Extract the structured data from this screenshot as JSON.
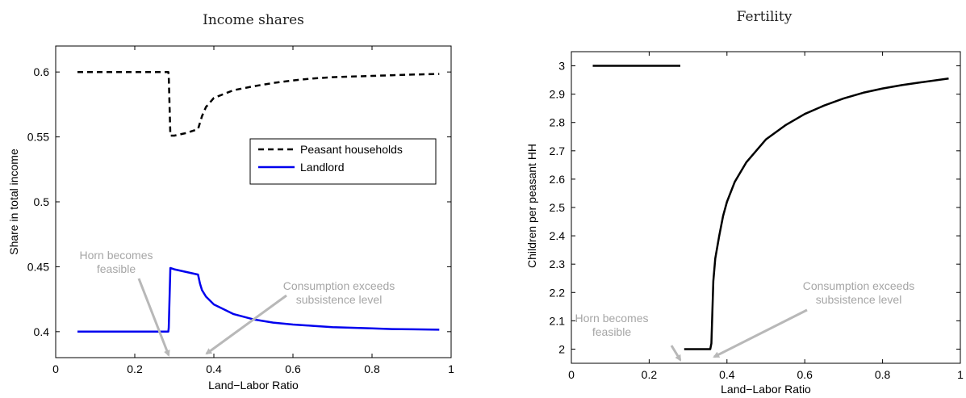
{
  "chart_data": [
    {
      "type": "line",
      "title": "Income shares",
      "xlabel": "Land−Labor Ratio",
      "ylabel": "Share in total income",
      "xlim": [
        0,
        1
      ],
      "ylim": [
        0.38,
        0.62
      ],
      "xticks": [
        "0",
        "0.2",
        "0.4",
        "0.6",
        "0.8",
        "1"
      ],
      "yticks": [
        "0.4",
        "0.45",
        "0.5",
        "0.55",
        "0.6"
      ],
      "legend_position": "upper-right",
      "series": [
        {
          "name": "Peasant households",
          "style": "dashed",
          "color": "#000000",
          "x": [
            0.055,
            0.2,
            0.285,
            0.286,
            0.29,
            0.3,
            0.33,
            0.36,
            0.37,
            0.38,
            0.4,
            0.45,
            0.5,
            0.55,
            0.6,
            0.65,
            0.7,
            0.75,
            0.8,
            0.85,
            0.9,
            0.97
          ],
          "y": [
            0.6,
            0.6,
            0.6,
            0.597,
            0.551,
            0.551,
            0.553,
            0.556,
            0.566,
            0.573,
            0.58,
            0.586,
            0.589,
            0.5915,
            0.5935,
            0.595,
            0.596,
            0.5965,
            0.597,
            0.5975,
            0.598,
            0.5985
          ]
        },
        {
          "name": "Landlord",
          "style": "solid",
          "color": "#0000ee",
          "x": [
            0.055,
            0.2,
            0.285,
            0.286,
            0.29,
            0.3,
            0.33,
            0.36,
            0.365,
            0.37,
            0.38,
            0.4,
            0.45,
            0.5,
            0.55,
            0.6,
            0.65,
            0.7,
            0.75,
            0.8,
            0.85,
            0.9,
            0.97
          ],
          "y": [
            0.4,
            0.4,
            0.4,
            0.403,
            0.449,
            0.448,
            0.446,
            0.444,
            0.437,
            0.432,
            0.427,
            0.421,
            0.4135,
            0.4095,
            0.407,
            0.4055,
            0.4045,
            0.4035,
            0.403,
            0.4025,
            0.402,
            0.4018,
            0.4015
          ]
        }
      ],
      "annotations": [
        {
          "text": [
            "Horn becomes",
            "feasible"
          ],
          "arrow_to_x": 0.29
        },
        {
          "text": [
            "Consumption exceeds",
            "subsistence level"
          ],
          "arrow_to_x": 0.36
        }
      ]
    },
    {
      "type": "line",
      "title": "Fertility",
      "xlabel": "Land−Labor Ratio",
      "ylabel": "Children per peasant HH",
      "xlim": [
        0,
        1
      ],
      "ylim": [
        1.95,
        3.05
      ],
      "xticks": [
        "0",
        "0.2",
        "0.4",
        "0.6",
        "0.8",
        "1"
      ],
      "yticks": [
        "2",
        "2.1",
        "2.2",
        "2.3",
        "2.4",
        "2.5",
        "2.6",
        "2.7",
        "2.8",
        "2.9",
        "3"
      ],
      "series": [
        {
          "segments": [
            {
              "x": [
                0.055,
                0.28
              ],
              "y": [
                3.0,
                3.0
              ]
            },
            {
              "x": [
                0.29,
                0.357,
                0.36,
                0.365,
                0.37,
                0.38,
                0.39,
                0.4,
                0.42,
                0.45,
                0.5,
                0.55,
                0.6,
                0.65,
                0.7,
                0.75,
                0.8,
                0.85,
                0.9,
                0.97
              ],
              "y": [
                2.0,
                2.0,
                2.02,
                2.24,
                2.32,
                2.4,
                2.47,
                2.52,
                2.59,
                2.66,
                2.74,
                2.79,
                2.83,
                2.86,
                2.885,
                2.905,
                2.92,
                2.932,
                2.942,
                2.955
              ]
            }
          ],
          "style": "solid",
          "color": "#000000"
        }
      ],
      "annotations": [
        {
          "text": [
            "Horn becomes",
            "feasible"
          ],
          "arrow_to_x": 0.29
        },
        {
          "text": [
            "Consumption exceeds",
            "subsistence level"
          ],
          "arrow_to_x": 0.36
        }
      ]
    }
  ]
}
